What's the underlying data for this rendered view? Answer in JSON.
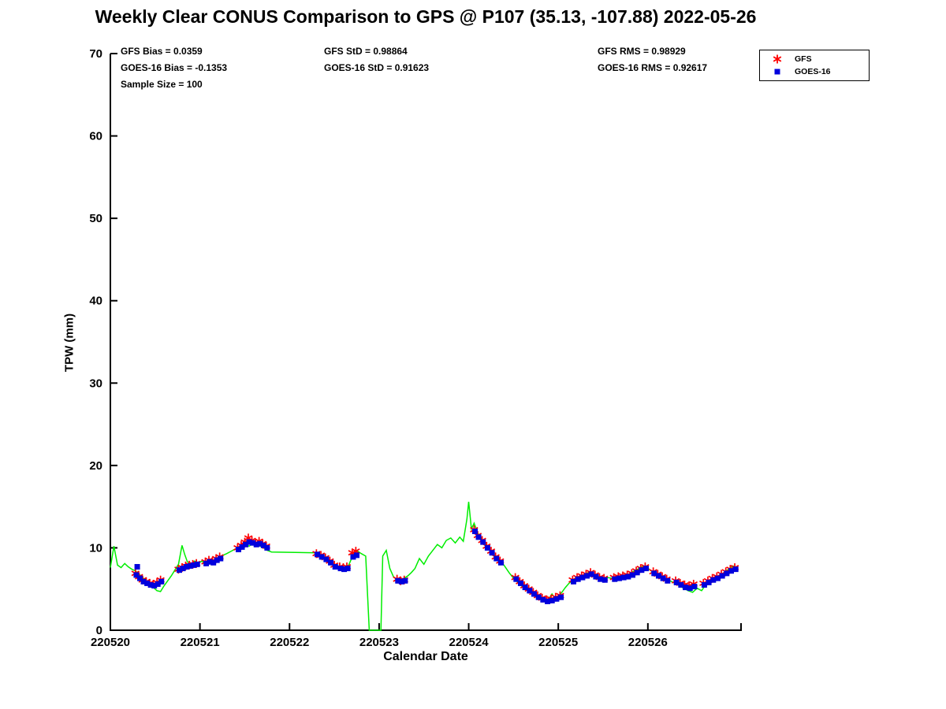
{
  "title": "Weekly Clear CONUS Comparison to GPS @ P107 (35.13, -107.88) 2022-05-26",
  "stats_columns": [
    [
      "GFS Bias = 0.0359",
      "GOES-16 Bias = -0.1353",
      "Sample Size = 100"
    ],
    [
      "GFS StD = 0.98864",
      "GOES-16 StD = 0.91623"
    ],
    [
      "GFS RMS = 0.98929",
      "GOES-16 RMS = 0.92617"
    ]
  ],
  "legend": {
    "entries": [
      {
        "label": "GFS",
        "marker": "asterisk"
      },
      {
        "label": "GOES-16",
        "marker": "square"
      }
    ]
  },
  "axes": {
    "ylabel": "TPW (mm)",
    "xlabel": "Calendar Date"
  },
  "colors": {
    "gps_line": "#00ee00",
    "gfs": "#ff0000",
    "goes16": "#0000dd",
    "axis": "#000000"
  },
  "chart_data": {
    "type": "line",
    "title": "Weekly Clear CONUS Comparison to GPS @ P107 (35.13, -107.88) 2022-05-26",
    "xlabel": "Calendar Date",
    "ylabel": "TPW (mm)",
    "ylim": [
      0,
      70
    ],
    "y_ticks": [
      0,
      10,
      20,
      30,
      40,
      50,
      60,
      70
    ],
    "x_tick_labels": [
      "220520",
      "220521",
      "220522",
      "220523",
      "220524",
      "220525",
      "220526"
    ],
    "x_tick_days": [
      0,
      1,
      2,
      3,
      4,
      5,
      6
    ],
    "x_axis_span_days": 7.04,
    "x_unit": "days since 220520",
    "grid": false,
    "legend_position": "top-right-outside",
    "series": [
      {
        "name": "GPS",
        "type": "line",
        "color": "#00ee00",
        "x": [
          0.0,
          0.04,
          0.08,
          0.12,
          0.16,
          0.2,
          0.24,
          0.28,
          0.32,
          0.36,
          0.4,
          0.44,
          0.48,
          0.52,
          0.56,
          0.6,
          0.64,
          0.68,
          0.72,
          0.76,
          0.8,
          0.83,
          0.86,
          0.9,
          0.94,
          0.98,
          1.02,
          1.06,
          1.1,
          1.14,
          1.18,
          1.22,
          1.26,
          1.3,
          1.35,
          1.4,
          1.45,
          1.5,
          1.55,
          1.6,
          1.65,
          1.7,
          1.75,
          1.8,
          2.3,
          2.36,
          2.42,
          2.48,
          2.54,
          2.6,
          2.66,
          2.72,
          2.76,
          2.8,
          2.85,
          2.89,
          2.91,
          3.02,
          3.04,
          3.08,
          3.12,
          3.16,
          3.2,
          3.24,
          3.28,
          3.32,
          3.36,
          3.4,
          3.45,
          3.5,
          3.55,
          3.6,
          3.65,
          3.7,
          3.75,
          3.8,
          3.85,
          3.9,
          3.94,
          3.98,
          4.0,
          4.03,
          4.06,
          4.1,
          4.15,
          4.2,
          4.25,
          4.3,
          4.35,
          4.4,
          4.45,
          4.5,
          4.55,
          4.6,
          4.65,
          4.7,
          4.75,
          4.8,
          4.85,
          4.9,
          4.93,
          4.96,
          5.0,
          5.04,
          5.08,
          5.12,
          5.16,
          5.2,
          5.25,
          5.3,
          5.35,
          5.4,
          5.45,
          5.5,
          5.55,
          5.6,
          5.65,
          5.7,
          5.75,
          5.8,
          5.85,
          5.9,
          5.95,
          6.0,
          6.05,
          6.1,
          6.15,
          6.2,
          6.25,
          6.3,
          6.35,
          6.4,
          6.45,
          6.5,
          6.55,
          6.6,
          6.65,
          6.7,
          6.75,
          6.8,
          6.85,
          6.9,
          6.95,
          7.0
        ],
        "y": [
          7.6,
          10.2,
          7.9,
          7.6,
          8.1,
          7.7,
          7.4,
          7.2,
          6.8,
          6.4,
          6.0,
          5.6,
          5.2,
          4.8,
          4.7,
          5.4,
          6.0,
          6.6,
          7.3,
          8.0,
          10.3,
          9.2,
          8.3,
          8.0,
          8.4,
          8.1,
          8.4,
          8.2,
          8.6,
          8.4,
          8.7,
          8.9,
          9.1,
          9.3,
          9.6,
          9.9,
          10.2,
          10.5,
          10.2,
          10.6,
          10.3,
          10.1,
          9.7,
          9.5,
          9.4,
          9.0,
          8.7,
          8.1,
          7.7,
          7.6,
          7.9,
          9.4,
          9.6,
          9.3,
          9.0,
          0.0,
          0.0,
          0.0,
          9.0,
          9.7,
          7.5,
          6.5,
          6.1,
          6.0,
          6.3,
          6.6,
          7.0,
          7.5,
          8.7,
          8.0,
          9.0,
          9.7,
          10.4,
          10.0,
          10.9,
          11.2,
          10.6,
          11.3,
          10.8,
          13.5,
          15.6,
          12.3,
          13.0,
          11.8,
          11.0,
          10.3,
          9.6,
          9.0,
          8.5,
          7.8,
          7.0,
          6.3,
          5.8,
          5.3,
          4.9,
          4.5,
          4.1,
          3.8,
          3.6,
          3.9,
          4.4,
          3.9,
          4.1,
          4.6,
          5.2,
          5.7,
          6.1,
          6.4,
          6.6,
          6.8,
          7.1,
          6.7,
          6.4,
          6.2,
          6.4,
          6.3,
          6.5,
          6.4,
          6.6,
          6.9,
          7.2,
          7.5,
          7.8,
          7.5,
          7.1,
          6.8,
          6.5,
          6.2,
          6.0,
          5.7,
          5.4,
          5.1,
          4.8,
          4.6,
          5.1,
          4.8,
          5.6,
          6.0,
          6.3,
          6.6,
          7.0,
          7.4,
          7.8,
          7.5
        ]
      },
      {
        "name": "GFS",
        "type": "scatter",
        "marker": "asterisk",
        "color": "#ff0000",
        "x": [
          0.28,
          0.32,
          0.36,
          0.4,
          0.44,
          0.48,
          0.52,
          0.56,
          0.76,
          0.8,
          0.84,
          0.88,
          0.92,
          0.96,
          1.06,
          1.1,
          1.14,
          1.18,
          1.22,
          1.42,
          1.46,
          1.5,
          1.54,
          1.58,
          1.62,
          1.66,
          1.7,
          1.74,
          2.3,
          2.35,
          2.4,
          2.45,
          2.5,
          2.56,
          2.6,
          2.64,
          2.7,
          2.74,
          3.2,
          3.24,
          3.28,
          4.06,
          4.1,
          4.15,
          4.2,
          4.25,
          4.3,
          4.35,
          4.52,
          4.57,
          4.62,
          4.67,
          4.72,
          4.77,
          4.82,
          4.87,
          4.92,
          4.97,
          5.02,
          5.16,
          5.21,
          5.26,
          5.31,
          5.36,
          5.41,
          5.46,
          5.51,
          5.62,
          5.67,
          5.72,
          5.77,
          5.82,
          5.87,
          5.92,
          5.97,
          6.06,
          6.11,
          6.16,
          6.21,
          6.31,
          6.36,
          6.41,
          6.46,
          6.51,
          6.62,
          6.67,
          6.72,
          6.77,
          6.82,
          6.87,
          6.92,
          6.97
        ],
        "y": [
          6.9,
          6.5,
          6.1,
          5.9,
          5.7,
          5.6,
          5.8,
          6.1,
          7.4,
          7.6,
          7.8,
          7.9,
          8.0,
          8.1,
          8.3,
          8.5,
          8.4,
          8.7,
          8.9,
          10.0,
          10.3,
          10.7,
          11.2,
          10.9,
          10.6,
          10.8,
          10.5,
          10.2,
          9.3,
          9.1,
          8.8,
          8.4,
          7.9,
          7.7,
          7.6,
          7.7,
          9.4,
          9.6,
          6.2,
          6.0,
          6.1,
          12.2,
          11.5,
          10.9,
          10.2,
          9.6,
          8.9,
          8.4,
          6.4,
          5.9,
          5.4,
          5.0,
          4.6,
          4.2,
          3.9,
          3.7,
          3.8,
          4.0,
          4.2,
          6.1,
          6.4,
          6.6,
          6.8,
          7.0,
          6.7,
          6.4,
          6.3,
          6.4,
          6.5,
          6.6,
          6.7,
          6.9,
          7.2,
          7.5,
          7.7,
          7.1,
          6.8,
          6.5,
          6.2,
          6.0,
          5.7,
          5.5,
          5.4,
          5.6,
          5.7,
          6.0,
          6.3,
          6.5,
          6.8,
          7.1,
          7.4,
          7.6
        ]
      },
      {
        "name": "GOES-16",
        "type": "scatter",
        "marker": "square",
        "color": "#0000dd",
        "x": [
          0.3,
          0.29,
          0.33,
          0.37,
          0.41,
          0.45,
          0.49,
          0.53,
          0.57,
          0.77,
          0.81,
          0.85,
          0.89,
          0.93,
          0.97,
          1.07,
          1.11,
          1.15,
          1.19,
          1.23,
          1.43,
          1.47,
          1.51,
          1.55,
          1.59,
          1.63,
          1.67,
          1.71,
          1.75,
          2.31,
          2.36,
          2.41,
          2.46,
          2.51,
          2.57,
          2.61,
          2.65,
          2.71,
          2.75,
          3.21,
          3.25,
          3.29,
          4.07,
          4.11,
          4.16,
          4.21,
          4.26,
          4.31,
          4.36,
          4.53,
          4.58,
          4.63,
          4.68,
          4.73,
          4.78,
          4.83,
          4.88,
          4.93,
          4.98,
          5.03,
          5.17,
          5.22,
          5.27,
          5.32,
          5.37,
          5.42,
          5.47,
          5.52,
          5.63,
          5.68,
          5.73,
          5.78,
          5.83,
          5.88,
          5.93,
          5.98,
          6.07,
          6.12,
          6.17,
          6.22,
          6.32,
          6.37,
          6.42,
          6.47,
          6.52,
          6.63,
          6.68,
          6.73,
          6.78,
          6.83,
          6.88,
          6.93,
          6.98
        ],
        "y": [
          7.7,
          6.7,
          6.3,
          5.9,
          5.7,
          5.5,
          5.4,
          5.6,
          5.9,
          7.3,
          7.5,
          7.7,
          7.8,
          7.9,
          8.0,
          8.1,
          8.3,
          8.2,
          8.5,
          8.7,
          9.8,
          10.1,
          10.4,
          10.7,
          10.6,
          10.4,
          10.5,
          10.3,
          10.0,
          9.2,
          8.9,
          8.6,
          8.2,
          7.7,
          7.5,
          7.4,
          7.5,
          8.9,
          9.1,
          6.0,
          5.9,
          6.0,
          12.0,
          11.3,
          10.7,
          10.0,
          9.4,
          8.7,
          8.2,
          6.2,
          5.7,
          5.2,
          4.8,
          4.4,
          4.0,
          3.7,
          3.5,
          3.6,
          3.8,
          4.0,
          5.9,
          6.2,
          6.4,
          6.6,
          6.8,
          6.5,
          6.2,
          6.1,
          6.2,
          6.3,
          6.4,
          6.5,
          6.7,
          7.0,
          7.3,
          7.5,
          6.9,
          6.6,
          6.3,
          6.0,
          5.8,
          5.5,
          5.2,
          5.1,
          5.3,
          5.5,
          5.8,
          6.1,
          6.3,
          6.6,
          6.9,
          7.2,
          7.4
        ]
      }
    ]
  }
}
